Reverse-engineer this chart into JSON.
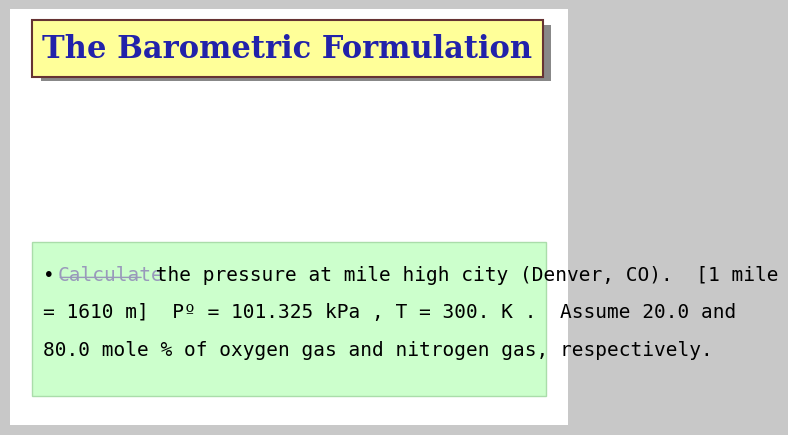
{
  "title": "The Barometric Formulation",
  "title_bg": "#ffff99",
  "title_color": "#2222aa",
  "title_border": "#663333",
  "title_fontsize": 22,
  "body_bg": "#ccffcc",
  "body_border": "#aaddaa",
  "calculate_word": "Calculate",
  "rest_of_line1": " the pressure at mile high city (Denver, CO).  [1 mile",
  "line2": "= 1610 m]  Pº = 101.325 kPa , T = 300. K .  Assume 20.0 and",
  "line3": "80.0 mole % of oxygen gas and nitrogen gas, respectively.",
  "body_fontsize": 14,
  "main_bg": "#c8c8c8",
  "slide_bg": "#ffffff"
}
